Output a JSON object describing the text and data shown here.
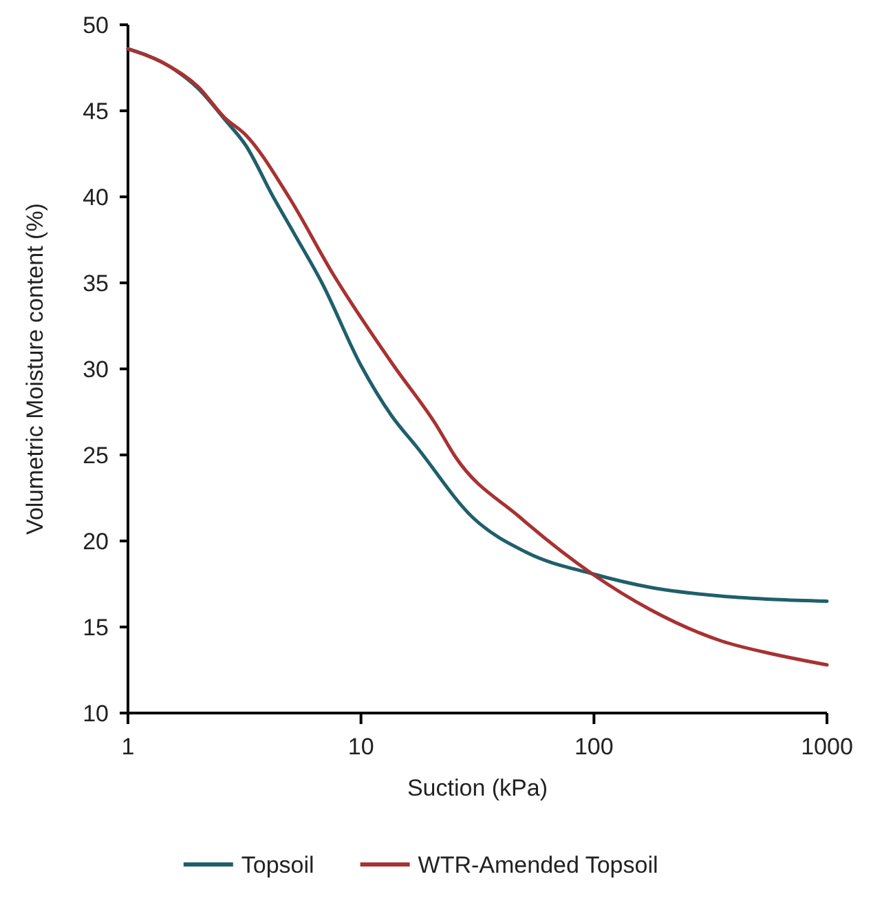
{
  "chart_data": {
    "type": "line",
    "xlabel": "Suction (kPa)",
    "ylabel": "Volumetric Moisture content (%)",
    "log": "x",
    "xlim": [
      1,
      1000
    ],
    "xticks": [
      1,
      10,
      100,
      1000
    ],
    "ylim": [
      10,
      50
    ],
    "yticks": [
      10,
      15,
      20,
      25,
      30,
      35,
      40,
      45,
      50
    ],
    "grid": false,
    "legend": "bottom",
    "marker": "none",
    "line_style": "solid",
    "series": [
      {
        "name": "Topsoil",
        "color": "#1f5f6b",
        "x": [
          1,
          1.5,
          2,
          2.6,
          3.2,
          4.2,
          5.2,
          6.8,
          10,
          13.5,
          17.5,
          30,
          52,
          98,
          175,
          350,
          600,
          1000
        ],
        "values": [
          48.6,
          47.6,
          46.3,
          44.5,
          43,
          40,
          37.8,
          35,
          30.2,
          27.3,
          25.4,
          21.4,
          19.3,
          18.1,
          17.3,
          16.8,
          16.6,
          16.5
        ]
      },
      {
        "name": "WTR-Amended Topsoil",
        "color": "#a83232",
        "x": [
          1,
          1.5,
          2,
          2.6,
          3.2,
          4.9,
          7.6,
          13.8,
          20.9,
          25.4,
          47.9,
          98,
          175,
          350,
          600,
          1000
        ],
        "values": [
          48.6,
          47.6,
          46.4,
          44.6,
          43.6,
          40,
          35.5,
          30.2,
          26.8,
          24.9,
          21.4,
          18.1,
          16,
          14.2,
          13.4,
          12.8
        ]
      }
    ]
  }
}
